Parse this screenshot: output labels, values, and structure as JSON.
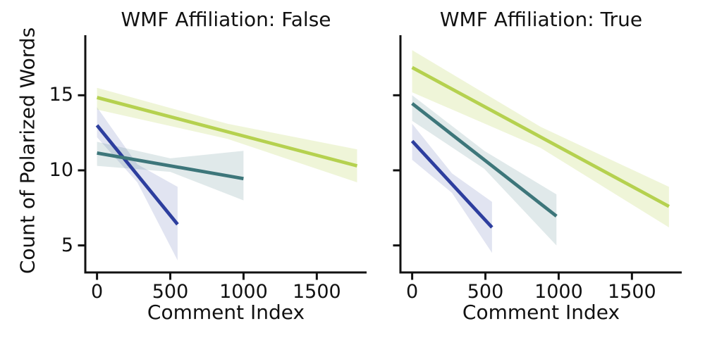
{
  "figure": {
    "background": "#ffffff",
    "text_color": "#111111",
    "spine_color": "#111111"
  },
  "chart_data": [
    {
      "type": "line",
      "title": "WMF Affiliation: False",
      "xlabel": "Comment Index",
      "ylabel": "Count of Polarized Words",
      "xlim": [
        -80,
        1840
      ],
      "ylim": [
        3.2,
        19.0
      ],
      "xticks": [
        0,
        500,
        1000,
        1500
      ],
      "yticks": [
        5,
        10,
        15
      ],
      "show_ytick_labels": true,
      "grid": false,
      "legend": "none",
      "series": [
        {
          "name": "blue",
          "color": "#2d3e9e",
          "band_color": "rgba(45,62,158,0.14)",
          "x": [
            0,
            550
          ],
          "y": [
            13.0,
            6.4
          ],
          "band": {
            "x": [
              0,
              275,
              550
            ],
            "upper": [
              14.2,
              10.4,
              8.9
            ],
            "lower": [
              12.2,
              9.2,
              4.0
            ]
          }
        },
        {
          "name": "teal",
          "color": "#3d767a",
          "band_color": "rgba(61,118,122,0.16)",
          "x": [
            0,
            1000
          ],
          "y": [
            11.15,
            9.45
          ],
          "band": {
            "x": [
              0,
              500,
              1000
            ],
            "upper": [
              11.9,
              10.8,
              11.3
            ],
            "lower": [
              10.3,
              9.9,
              8.0
            ]
          }
        },
        {
          "name": "yellow-green",
          "color": "#b5d14f",
          "band_color": "rgba(181,209,79,0.22)",
          "x": [
            0,
            1775
          ],
          "y": [
            14.85,
            10.3
          ],
          "band": {
            "x": [
              0,
              890,
              1775
            ],
            "upper": [
              15.5,
              13.1,
              11.4
            ],
            "lower": [
              14.05,
              12.1,
              9.2
            ]
          }
        }
      ]
    },
    {
      "type": "line",
      "title": "WMF Affiliation: True",
      "xlabel": "Comment Index",
      "ylabel": "",
      "xlim": [
        -80,
        1840
      ],
      "ylim": [
        3.2,
        19.0
      ],
      "xticks": [
        0,
        500,
        1000,
        1500
      ],
      "yticks": [
        5,
        10,
        15
      ],
      "show_ytick_labels": false,
      "grid": false,
      "legend": "none",
      "series": [
        {
          "name": "blue",
          "color": "#2d3e9e",
          "band_color": "rgba(45,62,158,0.14)",
          "x": [
            0,
            545
          ],
          "y": [
            11.95,
            6.2
          ],
          "band": {
            "x": [
              0,
              272,
              545
            ],
            "upper": [
              13.1,
              9.8,
              7.9
            ],
            "lower": [
              10.7,
              8.5,
              4.5
            ]
          }
        },
        {
          "name": "teal",
          "color": "#3d767a",
          "band_color": "rgba(61,118,122,0.16)",
          "x": [
            0,
            985
          ],
          "y": [
            14.45,
            6.95
          ],
          "band": {
            "x": [
              0,
              492,
              985
            ],
            "upper": [
              15.0,
              11.3,
              8.4
            ],
            "lower": [
              13.3,
              10.1,
              5.0
            ]
          }
        },
        {
          "name": "yellow-green",
          "color": "#b5d14f",
          "band_color": "rgba(181,209,79,0.22)",
          "x": [
            0,
            1753
          ],
          "y": [
            16.85,
            7.6
          ],
          "band": {
            "x": [
              0,
              876,
              1753
            ],
            "upper": [
              18.0,
              12.9,
              8.9
            ],
            "lower": [
              15.2,
              11.5,
              6.2
            ]
          }
        }
      ]
    }
  ]
}
